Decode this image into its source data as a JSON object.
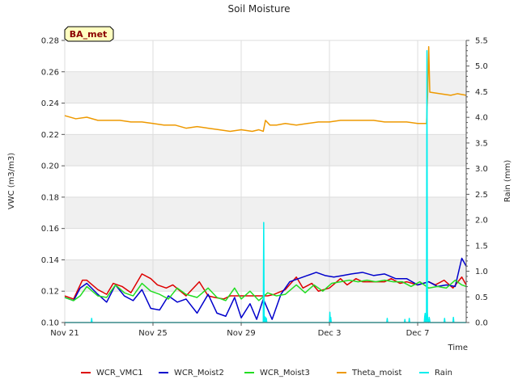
{
  "chart_data": {
    "type": "line",
    "title": "Soil Moisture",
    "badge": "BA_met",
    "xlabel": "Time",
    "ylabel": "VWC (m3/m3)",
    "y2label": "Rain (mm)",
    "x_ticks": [
      "Nov 21",
      "Nov 25",
      "Nov 29",
      "Dec 3",
      "Dec 7"
    ],
    "x_range_days": [
      0,
      18.2
    ],
    "ylim": [
      0.1,
      0.28
    ],
    "y_ticks": [
      "0.10",
      "0.12",
      "0.14",
      "0.16",
      "0.18",
      "0.20",
      "0.22",
      "0.24",
      "0.26",
      "0.28"
    ],
    "y2lim": [
      0.0,
      5.5
    ],
    "y2_ticks": [
      "0.0",
      "0.5",
      "1.0",
      "1.5",
      "2.0",
      "2.5",
      "3.0",
      "3.5",
      "4.0",
      "4.5",
      "5.0",
      "5.5"
    ],
    "grid": true,
    "legend_placement": "bottom",
    "series": [
      {
        "name": "WCR_VMC1",
        "axis": "left",
        "color": "#dd0000",
        "x": [
          0.0,
          0.4,
          0.6,
          0.8,
          1.0,
          1.5,
          1.9,
          2.2,
          2.6,
          3.0,
          3.5,
          3.9,
          4.2,
          4.6,
          4.9,
          5.5,
          6.1,
          6.5,
          6.8,
          7.2,
          7.5,
          8.0,
          8.4,
          8.8,
          9.2,
          9.5,
          10.0,
          10.5,
          10.8,
          11.2,
          11.5,
          12.0,
          12.5,
          12.8,
          13.2,
          13.5,
          14.0,
          14.5,
          14.8,
          15.2,
          15.5,
          16.0,
          16.5,
          16.8,
          17.2,
          17.6,
          18.0,
          18.2
        ],
        "y": [
          0.117,
          0.115,
          0.121,
          0.127,
          0.127,
          0.121,
          0.118,
          0.125,
          0.123,
          0.119,
          0.131,
          0.128,
          0.124,
          0.122,
          0.124,
          0.117,
          0.126,
          0.117,
          0.116,
          0.115,
          0.117,
          0.117,
          0.117,
          0.117,
          0.117,
          0.118,
          0.121,
          0.129,
          0.122,
          0.125,
          0.12,
          0.122,
          0.128,
          0.124,
          0.128,
          0.126,
          0.126,
          0.126,
          0.128,
          0.125,
          0.126,
          0.124,
          0.126,
          0.124,
          0.127,
          0.122,
          0.129,
          0.124
        ]
      },
      {
        "name": "WCR_Moist2",
        "axis": "left",
        "color": "#0000cc",
        "x": [
          0.0,
          0.4,
          0.7,
          1.0,
          1.5,
          1.9,
          2.3,
          2.7,
          3.1,
          3.5,
          3.9,
          4.3,
          4.7,
          5.1,
          5.5,
          6.0,
          6.5,
          6.9,
          7.3,
          7.7,
          8.0,
          8.4,
          8.7,
          9.0,
          9.4,
          9.8,
          10.2,
          10.6,
          11.0,
          11.4,
          11.8,
          12.2,
          12.6,
          13.0,
          13.5,
          14.0,
          14.5,
          15.0,
          15.5,
          16.0,
          16.5,
          16.9,
          17.3,
          17.7,
          18.0,
          18.2
        ],
        "y": [
          0.116,
          0.114,
          0.122,
          0.125,
          0.118,
          0.113,
          0.124,
          0.117,
          0.114,
          0.121,
          0.109,
          0.108,
          0.117,
          0.113,
          0.115,
          0.106,
          0.118,
          0.106,
          0.104,
          0.116,
          0.103,
          0.112,
          0.102,
          0.115,
          0.102,
          0.118,
          0.126,
          0.128,
          0.13,
          0.132,
          0.13,
          0.129,
          0.13,
          0.131,
          0.132,
          0.13,
          0.131,
          0.128,
          0.128,
          0.124,
          0.126,
          0.123,
          0.124,
          0.123,
          0.141,
          0.136
        ]
      },
      {
        "name": "WCR_Moist3",
        "axis": "left",
        "color": "#22dd22",
        "x": [
          0.0,
          0.4,
          0.7,
          1.0,
          1.5,
          1.9,
          2.3,
          2.7,
          3.1,
          3.5,
          3.9,
          4.3,
          4.7,
          5.1,
          5.5,
          6.0,
          6.5,
          6.9,
          7.3,
          7.7,
          8.0,
          8.4,
          8.8,
          9.2,
          9.6,
          10.0,
          10.5,
          10.9,
          11.3,
          11.7,
          12.1,
          12.5,
          12.9,
          13.3,
          13.7,
          14.1,
          14.5,
          14.9,
          15.3,
          15.7,
          16.1,
          16.5,
          16.9,
          17.3,
          17.7,
          18.0,
          18.2
        ],
        "y": [
          0.116,
          0.114,
          0.117,
          0.123,
          0.117,
          0.116,
          0.124,
          0.119,
          0.117,
          0.125,
          0.12,
          0.118,
          0.115,
          0.122,
          0.118,
          0.116,
          0.122,
          0.116,
          0.114,
          0.122,
          0.115,
          0.12,
          0.114,
          0.119,
          0.117,
          0.118,
          0.124,
          0.119,
          0.124,
          0.12,
          0.125,
          0.126,
          0.127,
          0.126,
          0.127,
          0.126,
          0.127,
          0.126,
          0.126,
          0.123,
          0.126,
          0.122,
          0.123,
          0.122,
          0.127,
          0.124,
          0.123
        ]
      },
      {
        "name": "Theta_moist",
        "axis": "left",
        "color": "#ee9900",
        "x": [
          0.0,
          0.5,
          1.0,
          1.5,
          2.0,
          2.5,
          3.0,
          3.5,
          4.0,
          4.5,
          5.0,
          5.5,
          6.0,
          6.5,
          7.0,
          7.5,
          8.0,
          8.5,
          8.8,
          9.0,
          9.1,
          9.3,
          9.6,
          10.0,
          10.5,
          11.0,
          11.5,
          12.0,
          12.5,
          13.0,
          13.5,
          14.0,
          14.5,
          15.0,
          15.5,
          16.0,
          16.4,
          16.45,
          16.5,
          16.55,
          17.0,
          17.5,
          17.8,
          18.2
        ],
        "y": [
          0.232,
          0.23,
          0.231,
          0.229,
          0.229,
          0.229,
          0.228,
          0.228,
          0.227,
          0.226,
          0.226,
          0.224,
          0.225,
          0.224,
          0.223,
          0.222,
          0.223,
          0.222,
          0.223,
          0.222,
          0.229,
          0.226,
          0.226,
          0.227,
          0.226,
          0.227,
          0.228,
          0.228,
          0.229,
          0.229,
          0.229,
          0.229,
          0.228,
          0.228,
          0.228,
          0.227,
          0.227,
          0.245,
          0.276,
          0.247,
          0.246,
          0.245,
          0.246,
          0.245
        ]
      },
      {
        "name": "Rain",
        "axis": "right",
        "color": "#00eeee",
        "x": [
          0.0,
          1.2,
          1.22,
          1.24,
          9.0,
          9.02,
          9.04,
          9.06,
          9.08,
          9.1,
          9.12,
          9.14,
          9.16,
          12.0,
          12.02,
          12.04,
          12.06,
          12.08,
          14.6,
          14.62,
          14.64,
          15.4,
          15.42,
          15.44,
          15.6,
          15.62,
          15.64,
          16.3,
          16.32,
          16.34,
          16.36,
          16.4,
          16.42,
          16.44,
          16.46,
          16.5,
          16.52,
          16.54,
          16.56,
          17.2,
          17.22,
          17.24,
          17.6,
          17.62,
          17.64,
          18.2
        ],
        "y": [
          0.0,
          0.0,
          0.08,
          0.0,
          0.0,
          1.95,
          0.0,
          0.12,
          0.0,
          0.1,
          0.0,
          0.08,
          0.0,
          0.0,
          0.2,
          0.0,
          0.1,
          0.0,
          0.0,
          0.08,
          0.0,
          0.0,
          0.06,
          0.0,
          0.0,
          0.08,
          0.0,
          0.0,
          0.12,
          0.18,
          0.0,
          0.0,
          5.3,
          0.2,
          0.0,
          0.0,
          0.1,
          0.06,
          0.0,
          0.0,
          0.08,
          0.0,
          0.0,
          0.1,
          0.0,
          0.0
        ]
      }
    ]
  }
}
